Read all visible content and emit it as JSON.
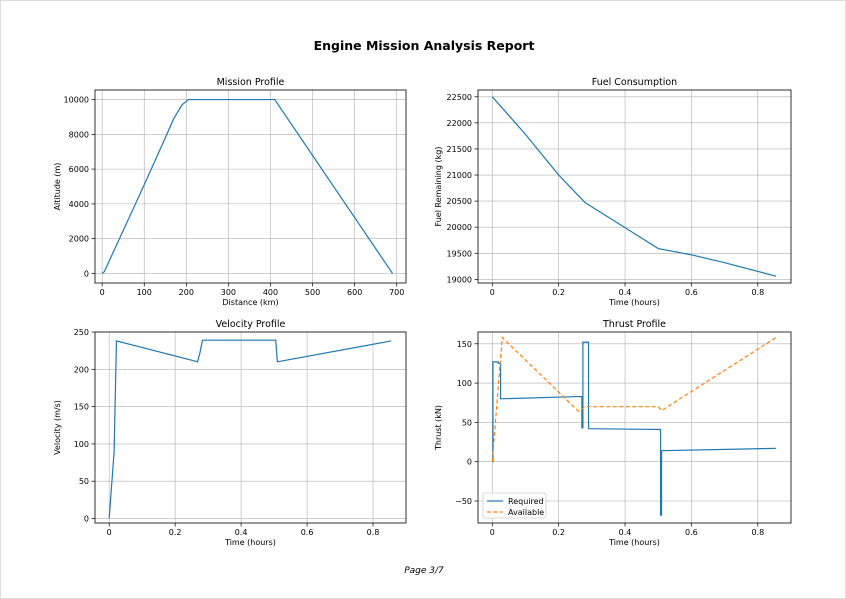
{
  "report": {
    "title": "Engine Mission Analysis Report",
    "page_label": "Page 3/7"
  },
  "colors": {
    "series_blue": "#1f77b4",
    "series_orange": "#ff7f0e",
    "grid": "#b0b0b0"
  },
  "chart_data": [
    {
      "type": "line",
      "title": "Mission Profile",
      "xlabel": "Distance (km)",
      "ylabel": "Altitude (m)",
      "xlim": [
        -17,
        722
      ],
      "ylim": [
        -550,
        10550
      ],
      "xticks": [
        0,
        100,
        200,
        300,
        400,
        500,
        600,
        700
      ],
      "yticks": [
        0,
        2000,
        4000,
        6000,
        8000,
        10000
      ],
      "grid": true,
      "series": [
        {
          "name": "Altitude",
          "color": "#1f77b4",
          "dash": "",
          "x": [
            0,
            5,
            100,
            150,
            170,
            190,
            205,
            410,
            690
          ],
          "y": [
            0,
            100,
            5100,
            7800,
            8900,
            9700,
            10000,
            10000,
            0
          ]
        }
      ]
    },
    {
      "type": "line",
      "title": "Fuel Consumption",
      "xlabel": "Time (hours)",
      "ylabel": "Fuel Remaining (kg)",
      "xlim": [
        -0.043,
        0.9
      ],
      "ylim": [
        18930,
        22630
      ],
      "xticks": [
        0.0,
        0.2,
        0.4,
        0.6,
        0.8
      ],
      "yticks": [
        19000,
        19500,
        20000,
        20500,
        21000,
        21500,
        22000,
        22500
      ],
      "grid": true,
      "series": [
        {
          "name": "Fuel",
          "color": "#1f77b4",
          "dash": "",
          "x": [
            0,
            0.1,
            0.2,
            0.23,
            0.28,
            0.29,
            0.5,
            0.6,
            0.7,
            0.855
          ],
          "y": [
            22500,
            21780,
            21000,
            20800,
            20470,
            20430,
            19590,
            19470,
            19320,
            19060
          ]
        }
      ]
    },
    {
      "type": "line",
      "title": "Velocity Profile",
      "xlabel": "Time (hours)",
      "ylabel": "Velocity (m/s)",
      "xlim": [
        -0.043,
        0.9
      ],
      "ylim": [
        -6,
        250
      ],
      "xticks": [
        0.0,
        0.2,
        0.4,
        0.6,
        0.8
      ],
      "yticks": [
        0,
        50,
        100,
        150,
        200,
        250
      ],
      "grid": true,
      "series": [
        {
          "name": "Velocity",
          "color": "#1f77b4",
          "dash": "",
          "x": [
            0,
            0.015,
            0.022,
            0.26,
            0.268,
            0.275,
            0.283,
            0.505,
            0.51,
            0.855
          ],
          "y": [
            0,
            90,
            238,
            211,
            210,
            222,
            239,
            239,
            210,
            238
          ]
        }
      ]
    },
    {
      "type": "line",
      "title": "Thrust Profile",
      "xlabel": "Time (hours)",
      "ylabel": "Thrust (kN)",
      "xlim": [
        -0.043,
        0.9
      ],
      "ylim": [
        -78,
        165
      ],
      "xticks": [
        0.0,
        0.2,
        0.4,
        0.6,
        0.8
      ],
      "yticks": [
        -50,
        0,
        50,
        100,
        150
      ],
      "grid": true,
      "legend": {
        "position": "lower-left",
        "entries": [
          "Required",
          "Available"
        ]
      },
      "series": [
        {
          "name": "Required",
          "color": "#1f77b4",
          "dash": "",
          "x": [
            0,
            0.002,
            0.002,
            0.018,
            0.018,
            0.025,
            0.025,
            0.27,
            0.27,
            0.273,
            0.273,
            0.29,
            0.29,
            0.507,
            0.507,
            0.51,
            0.51,
            0.855
          ],
          "y": [
            0,
            0,
            127,
            127,
            125,
            125,
            80,
            83,
            43,
            43,
            152,
            152,
            42,
            41,
            -68,
            -68,
            14,
            17
          ]
        }
      ],
      "series_extra": [
        {
          "name": "Available",
          "color": "#ff7f0e",
          "dash": "4,2.5",
          "x": [
            0,
            0.03,
            0.26,
            0.28,
            0.5,
            0.51,
            0.855
          ],
          "y": [
            0,
            158,
            64,
            70,
            70,
            65,
            158
          ]
        }
      ]
    }
  ]
}
